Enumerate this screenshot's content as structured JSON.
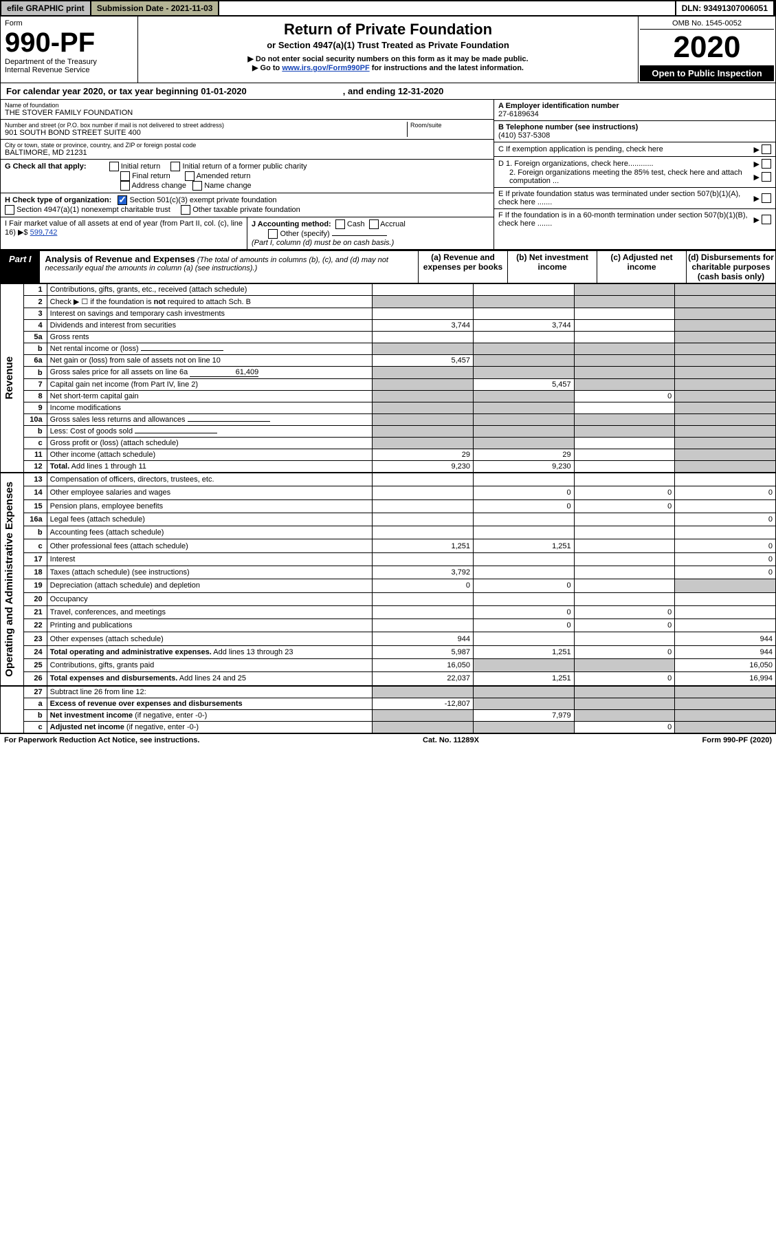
{
  "topbar": {
    "efile": "efile GRAPHIC print",
    "submission_label": "Submission Date - 2021-11-03",
    "dln": "DLN: 93491307006051"
  },
  "header": {
    "form_word": "Form",
    "form_no": "990-PF",
    "dept": "Department of the Treasury",
    "irs": "Internal Revenue Service",
    "title": "Return of Private Foundation",
    "subtitle": "or Section 4947(a)(1) Trust Treated as Private Foundation",
    "note1": "▶ Do not enter social security numbers on this form as it may be made public.",
    "note2_pre": "▶ Go to ",
    "note2_link": "www.irs.gov/Form990PF",
    "note2_post": " for instructions and the latest information.",
    "omb": "OMB No. 1545-0052",
    "year": "2020",
    "open": "Open to Public Inspection"
  },
  "calendar": {
    "text_a": "For calendar year 2020, or tax year beginning 01-01-2020",
    "text_b": ", and ending 12-31-2020"
  },
  "foundation": {
    "name_label": "Name of foundation",
    "name": "THE STOVER FAMILY FOUNDATION",
    "addr_label": "Number and street (or P.O. box number if mail is not delivered to street address)",
    "addr": "901 SOUTH BOND STREET SUITE 400",
    "room_label": "Room/suite",
    "city_label": "City or town, state or province, country, and ZIP or foreign postal code",
    "city": "BALTIMORE, MD  21231",
    "ein_label": "A Employer identification number",
    "ein": "27-6189634",
    "phone_label": "B Telephone number (see instructions)",
    "phone": "(410) 537-5308",
    "c_label": "C If exemption application is pending, check here",
    "d1": "D 1. Foreign organizations, check here............",
    "d2": "2. Foreign organizations meeting the 85% test, check here and attach computation ...",
    "e_label": "E  If private foundation status was terminated under section 507(b)(1)(A), check here .......",
    "f_label": "F  If the foundation is in a 60-month termination under section 507(b)(1)(B), check here ......."
  },
  "checkG": {
    "label": "G Check all that apply:",
    "opts": [
      "Initial return",
      "Initial return of a former public charity",
      "Final return",
      "Amended return",
      "Address change",
      "Name change"
    ]
  },
  "checkH": {
    "label": "H Check type of organization:",
    "opt1": "Section 501(c)(3) exempt private foundation",
    "opt2": "Section 4947(a)(1) nonexempt charitable trust",
    "opt3": "Other taxable private foundation"
  },
  "sectionI": {
    "label": "I Fair market value of all assets at end of year (from Part II, col. (c), line 16) ▶$",
    "value": "599,742"
  },
  "sectionJ": {
    "label": "J Accounting method:",
    "cash": "Cash",
    "accrual": "Accrual",
    "other": "Other (specify)",
    "note": "(Part I, column (d) must be on cash basis.)"
  },
  "part1": {
    "label": "Part I",
    "title": "Analysis of Revenue and Expenses",
    "title_note": " (The total of amounts in columns (b), (c), and (d) may not necessarily equal the amounts in column (a) (see instructions).)",
    "col_a": "(a)  Revenue and expenses per books",
    "col_b": "(b)  Net investment income",
    "col_c": "(c)  Adjusted net income",
    "col_d": "(d)  Disbursements for charitable purposes (cash basis only)"
  },
  "side_labels": {
    "revenue": "Revenue",
    "expenses": "Operating and Administrative Expenses"
  },
  "rows": [
    {
      "n": "1",
      "desc": "Contributions, gifts, grants, etc., received (attach schedule)",
      "a": "",
      "b": "",
      "c": "G",
      "d": "G"
    },
    {
      "n": "2",
      "desc": "Check ▶ ☐ if the foundation is <b>not</b> required to attach Sch. B",
      "a": "G",
      "b": "G",
      "c": "G",
      "d": "G"
    },
    {
      "n": "3",
      "desc": "Interest on savings and temporary cash investments",
      "a": "",
      "b": "",
      "c": "",
      "d": "G"
    },
    {
      "n": "4",
      "desc": "Dividends and interest from securities",
      "a": "3,744",
      "b": "3,744",
      "c": "",
      "d": "G"
    },
    {
      "n": "5a",
      "desc": "Gross rents",
      "a": "",
      "b": "",
      "c": "",
      "d": "G"
    },
    {
      "n": "b",
      "desc": "Net rental income or (loss)",
      "a": "G",
      "b": "G",
      "c": "G",
      "d": "G",
      "inline": true
    },
    {
      "n": "6a",
      "desc": "Net gain or (loss) from sale of assets not on line 10",
      "a": "5,457",
      "b": "G",
      "c": "G",
      "d": "G"
    },
    {
      "n": "b",
      "desc": "Gross sales price for all assets on line 6a",
      "inline_val": "61,409",
      "a": "G",
      "b": "G",
      "c": "G",
      "d": "G"
    },
    {
      "n": "7",
      "desc": "Capital gain net income (from Part IV, line 2)",
      "a": "G",
      "b": "5,457",
      "c": "G",
      "d": "G"
    },
    {
      "n": "8",
      "desc": "Net short-term capital gain",
      "a": "G",
      "b": "G",
      "c": "0",
      "d": "G"
    },
    {
      "n": "9",
      "desc": "Income modifications",
      "a": "G",
      "b": "G",
      "c": "",
      "d": "G"
    },
    {
      "n": "10a",
      "desc": "Gross sales less returns and allowances",
      "a": "G",
      "b": "G",
      "c": "G",
      "d": "G",
      "inline": true
    },
    {
      "n": "b",
      "desc": "Less: Cost of goods sold",
      "a": "G",
      "b": "G",
      "c": "G",
      "d": "G",
      "inline": true
    },
    {
      "n": "c",
      "desc": "Gross profit or (loss) (attach schedule)",
      "a": "G",
      "b": "G",
      "c": "",
      "d": "G"
    },
    {
      "n": "11",
      "desc": "Other income (attach schedule)",
      "a": "29",
      "b": "29",
      "c": "",
      "d": "G"
    },
    {
      "n": "12",
      "desc": "<b>Total.</b> Add lines 1 through 11",
      "a": "9,230",
      "b": "9,230",
      "c": "",
      "d": "G"
    }
  ],
  "exp_rows": [
    {
      "n": "13",
      "desc": "Compensation of officers, directors, trustees, etc.",
      "a": "",
      "b": "",
      "c": "",
      "d": ""
    },
    {
      "n": "14",
      "desc": "Other employee salaries and wages",
      "a": "",
      "b": "0",
      "c": "0",
      "d": "0"
    },
    {
      "n": "15",
      "desc": "Pension plans, employee benefits",
      "a": "",
      "b": "0",
      "c": "0",
      "d": ""
    },
    {
      "n": "16a",
      "desc": "Legal fees (attach schedule)",
      "a": "",
      "b": "",
      "c": "",
      "d": "0"
    },
    {
      "n": "b",
      "desc": "Accounting fees (attach schedule)",
      "a": "",
      "b": "",
      "c": "",
      "d": ""
    },
    {
      "n": "c",
      "desc": "Other professional fees (attach schedule)",
      "a": "1,251",
      "b": "1,251",
      "c": "",
      "d": "0"
    },
    {
      "n": "17",
      "desc": "Interest",
      "a": "",
      "b": "",
      "c": "",
      "d": "0"
    },
    {
      "n": "18",
      "desc": "Taxes (attach schedule) (see instructions)",
      "a": "3,792",
      "b": "",
      "c": "",
      "d": "0"
    },
    {
      "n": "19",
      "desc": "Depreciation (attach schedule) and depletion",
      "a": "0",
      "b": "0",
      "c": "",
      "d": "G"
    },
    {
      "n": "20",
      "desc": "Occupancy",
      "a": "",
      "b": "",
      "c": "",
      "d": ""
    },
    {
      "n": "21",
      "desc": "Travel, conferences, and meetings",
      "a": "",
      "b": "0",
      "c": "0",
      "d": ""
    },
    {
      "n": "22",
      "desc": "Printing and publications",
      "a": "",
      "b": "0",
      "c": "0",
      "d": ""
    },
    {
      "n": "23",
      "desc": "Other expenses (attach schedule)",
      "a": "944",
      "b": "",
      "c": "",
      "d": "944"
    },
    {
      "n": "24",
      "desc": "<b>Total operating and administrative expenses.</b> Add lines 13 through 23",
      "a": "5,987",
      "b": "1,251",
      "c": "0",
      "d": "944"
    },
    {
      "n": "25",
      "desc": "Contributions, gifts, grants paid",
      "a": "16,050",
      "b": "G",
      "c": "G",
      "d": "16,050"
    },
    {
      "n": "26",
      "desc": "<b>Total expenses and disbursements.</b> Add lines 24 and 25",
      "a": "22,037",
      "b": "1,251",
      "c": "0",
      "d": "16,994"
    }
  ],
  "net_rows": [
    {
      "n": "27",
      "desc": "Subtract line 26 from line 12:",
      "a": "G",
      "b": "G",
      "c": "G",
      "d": "G"
    },
    {
      "n": "a",
      "desc": "<b>Excess of revenue over expenses and disbursements</b>",
      "a": "-12,807",
      "b": "G",
      "c": "G",
      "d": "G"
    },
    {
      "n": "b",
      "desc": "<b>Net investment income</b> (if negative, enter -0-)",
      "a": "G",
      "b": "7,979",
      "c": "G",
      "d": "G"
    },
    {
      "n": "c",
      "desc": "<b>Adjusted net income</b> (if negative, enter -0-)",
      "a": "G",
      "b": "G",
      "c": "0",
      "d": "G"
    }
  ],
  "footer": {
    "left": "For Paperwork Reduction Act Notice, see instructions.",
    "mid": "Cat. No. 11289X",
    "right": "Form 990-PF (2020)"
  }
}
